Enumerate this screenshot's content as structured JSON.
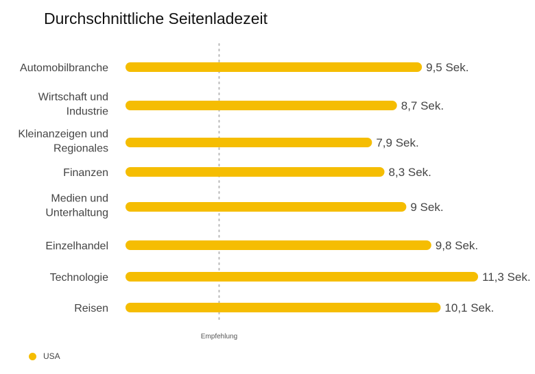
{
  "colors": {
    "bar": "#F5BD02",
    "reference_line": "#B8B8B8"
  },
  "chart_data": {
    "type": "bar",
    "orientation": "horizontal",
    "title": "Durchschnittliche Seitenladezeit",
    "categories": [
      [
        "Automobilbranche"
      ],
      [
        "Wirtschaft und",
        "Industrie"
      ],
      [
        "Kleinanzeigen und",
        "Regionales"
      ],
      [
        "Finanzen"
      ],
      [
        "Medien und",
        "Unterhaltung"
      ],
      [
        "Einzelhandel"
      ],
      [
        "Technologie"
      ],
      [
        "Reisen"
      ]
    ],
    "series": [
      {
        "name": "USA",
        "values": [
          9.5,
          8.7,
          7.9,
          8.3,
          9,
          9.8,
          11.3,
          10.1
        ],
        "labels": [
          "9,5 Sek.",
          "8,7 Sek.",
          "7,9 Sek.",
          "8,3 Sek.",
          "9 Sek.",
          "9,8 Sek.",
          "11,3 Sek.",
          "10,1 Sek."
        ]
      }
    ],
    "reference_line": {
      "value": 3,
      "label": "Empfehlung"
    },
    "xlim": [
      0,
      11.3
    ],
    "grid": false,
    "legend": "bottom-left"
  }
}
